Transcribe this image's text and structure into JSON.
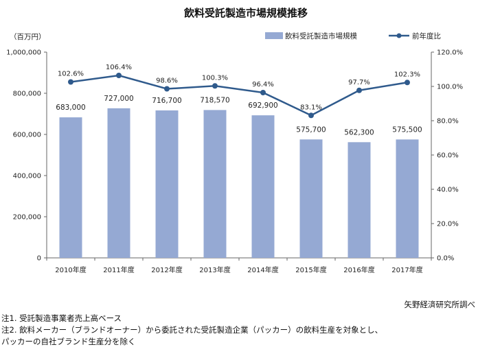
{
  "chart_data": {
    "type": "bar",
    "title": "飲料受託製造市場規模推移",
    "ylabel": "（百万円）",
    "categories": [
      "2010年度",
      "2011年度",
      "2012年度",
      "2013年度",
      "2014年度",
      "2015年度",
      "2016年度",
      "2017年度"
    ],
    "series": [
      {
        "name": "飲料受託製造市場規模",
        "type": "bar",
        "axis": "left",
        "values": [
          683000,
          727000,
          716700,
          718570,
          692900,
          575700,
          562300,
          575500
        ],
        "labels": [
          "683,000",
          "727,000",
          "716,700",
          "718,570",
          "692,900",
          "575,700",
          "562,300",
          "575,500"
        ],
        "color": "#95a9d3"
      },
      {
        "name": "前年度比",
        "type": "line",
        "axis": "right",
        "values": [
          102.6,
          106.4,
          98.6,
          100.3,
          96.4,
          83.1,
          97.7,
          102.3
        ],
        "labels": [
          "102.6%",
          "106.4%",
          "98.6%",
          "100.3%",
          "96.4%",
          "83.1%",
          "97.7%",
          "102.3%"
        ],
        "color": "#2f5a8c"
      }
    ],
    "y_left": {
      "range": [
        0,
        1000000
      ],
      "ticks": [
        0,
        200000,
        400000,
        600000,
        800000,
        1000000
      ],
      "tick_labels": [
        "0",
        "200,000",
        "400,000",
        "600,000",
        "800,000",
        "1,000,000"
      ]
    },
    "y_right": {
      "range": [
        0,
        120
      ],
      "ticks": [
        0,
        20,
        40,
        60,
        80,
        100,
        120
      ],
      "tick_labels": [
        "0.0%",
        "20.0%",
        "40.0%",
        "60.0%",
        "80.0%",
        "100.0%",
        "120.0%"
      ]
    },
    "grid": false,
    "legend_position": "top-right"
  },
  "source": "矢野経済研究所調べ",
  "notes": [
    "注1. 受託製造事業者売上高ベース",
    "注2. 飲料メーカー（ブランドオーナー）から委託された受託製造企業（パッカー）の飲料生産を対象とし、",
    "パッカーの自社ブランド生産分を除く"
  ]
}
